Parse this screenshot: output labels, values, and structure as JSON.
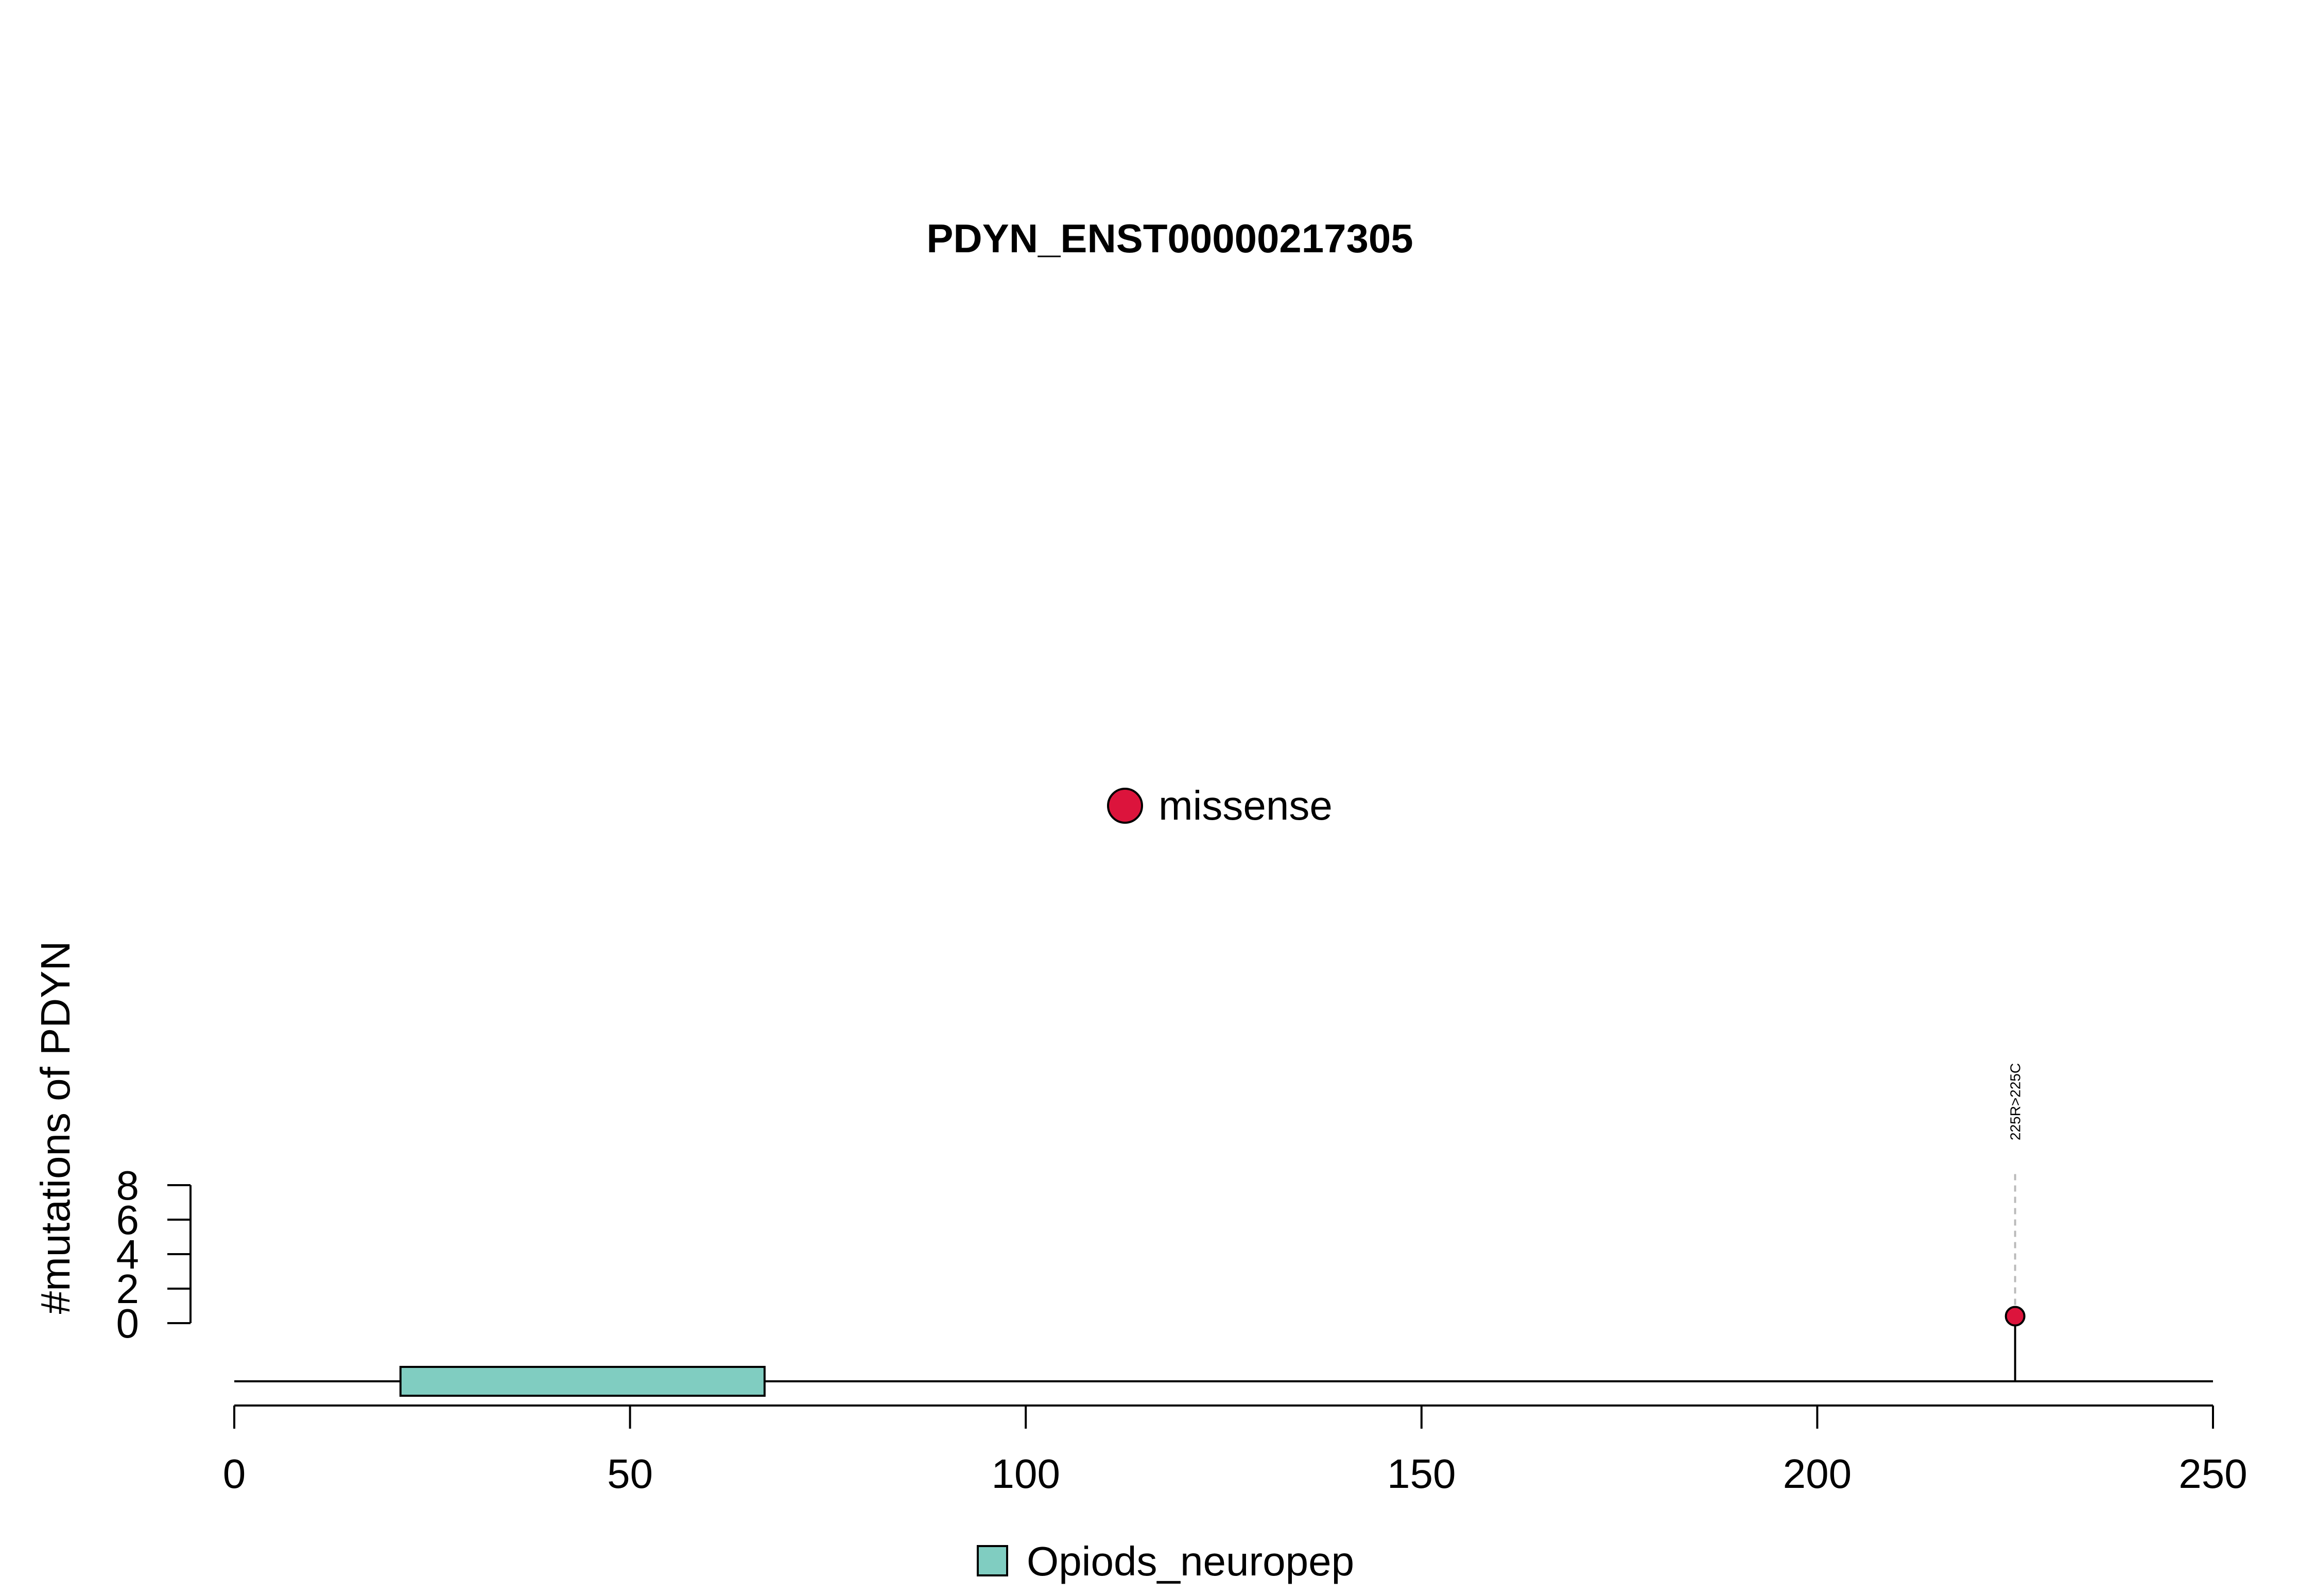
{
  "chart_data": {
    "type": "lollipop",
    "title": "PDYN_ENST00000217305",
    "ylabel": "#mutations of PDYN",
    "xlabel": "",
    "xlim": [
      0,
      250
    ],
    "x_ticks": [
      0,
      50,
      100,
      150,
      200,
      250
    ],
    "ylim": [
      0,
      8
    ],
    "y_ticks": [
      0,
      2,
      4,
      6,
      8
    ],
    "protein_length": 250,
    "mutations": [
      {
        "position": 225,
        "count": 1,
        "type": "missense",
        "label": "225R>225C"
      }
    ],
    "domains": [
      {
        "name": "Opiods_neuropep",
        "start": 21,
        "end": 67,
        "color": "#80cdc1"
      }
    ],
    "mutation_legend": [
      {
        "name": "missense",
        "color": "#dc143c"
      }
    ],
    "domain_legend": [
      {
        "name": "Opiods_neuropep",
        "color": "#80cdc1"
      }
    ]
  }
}
